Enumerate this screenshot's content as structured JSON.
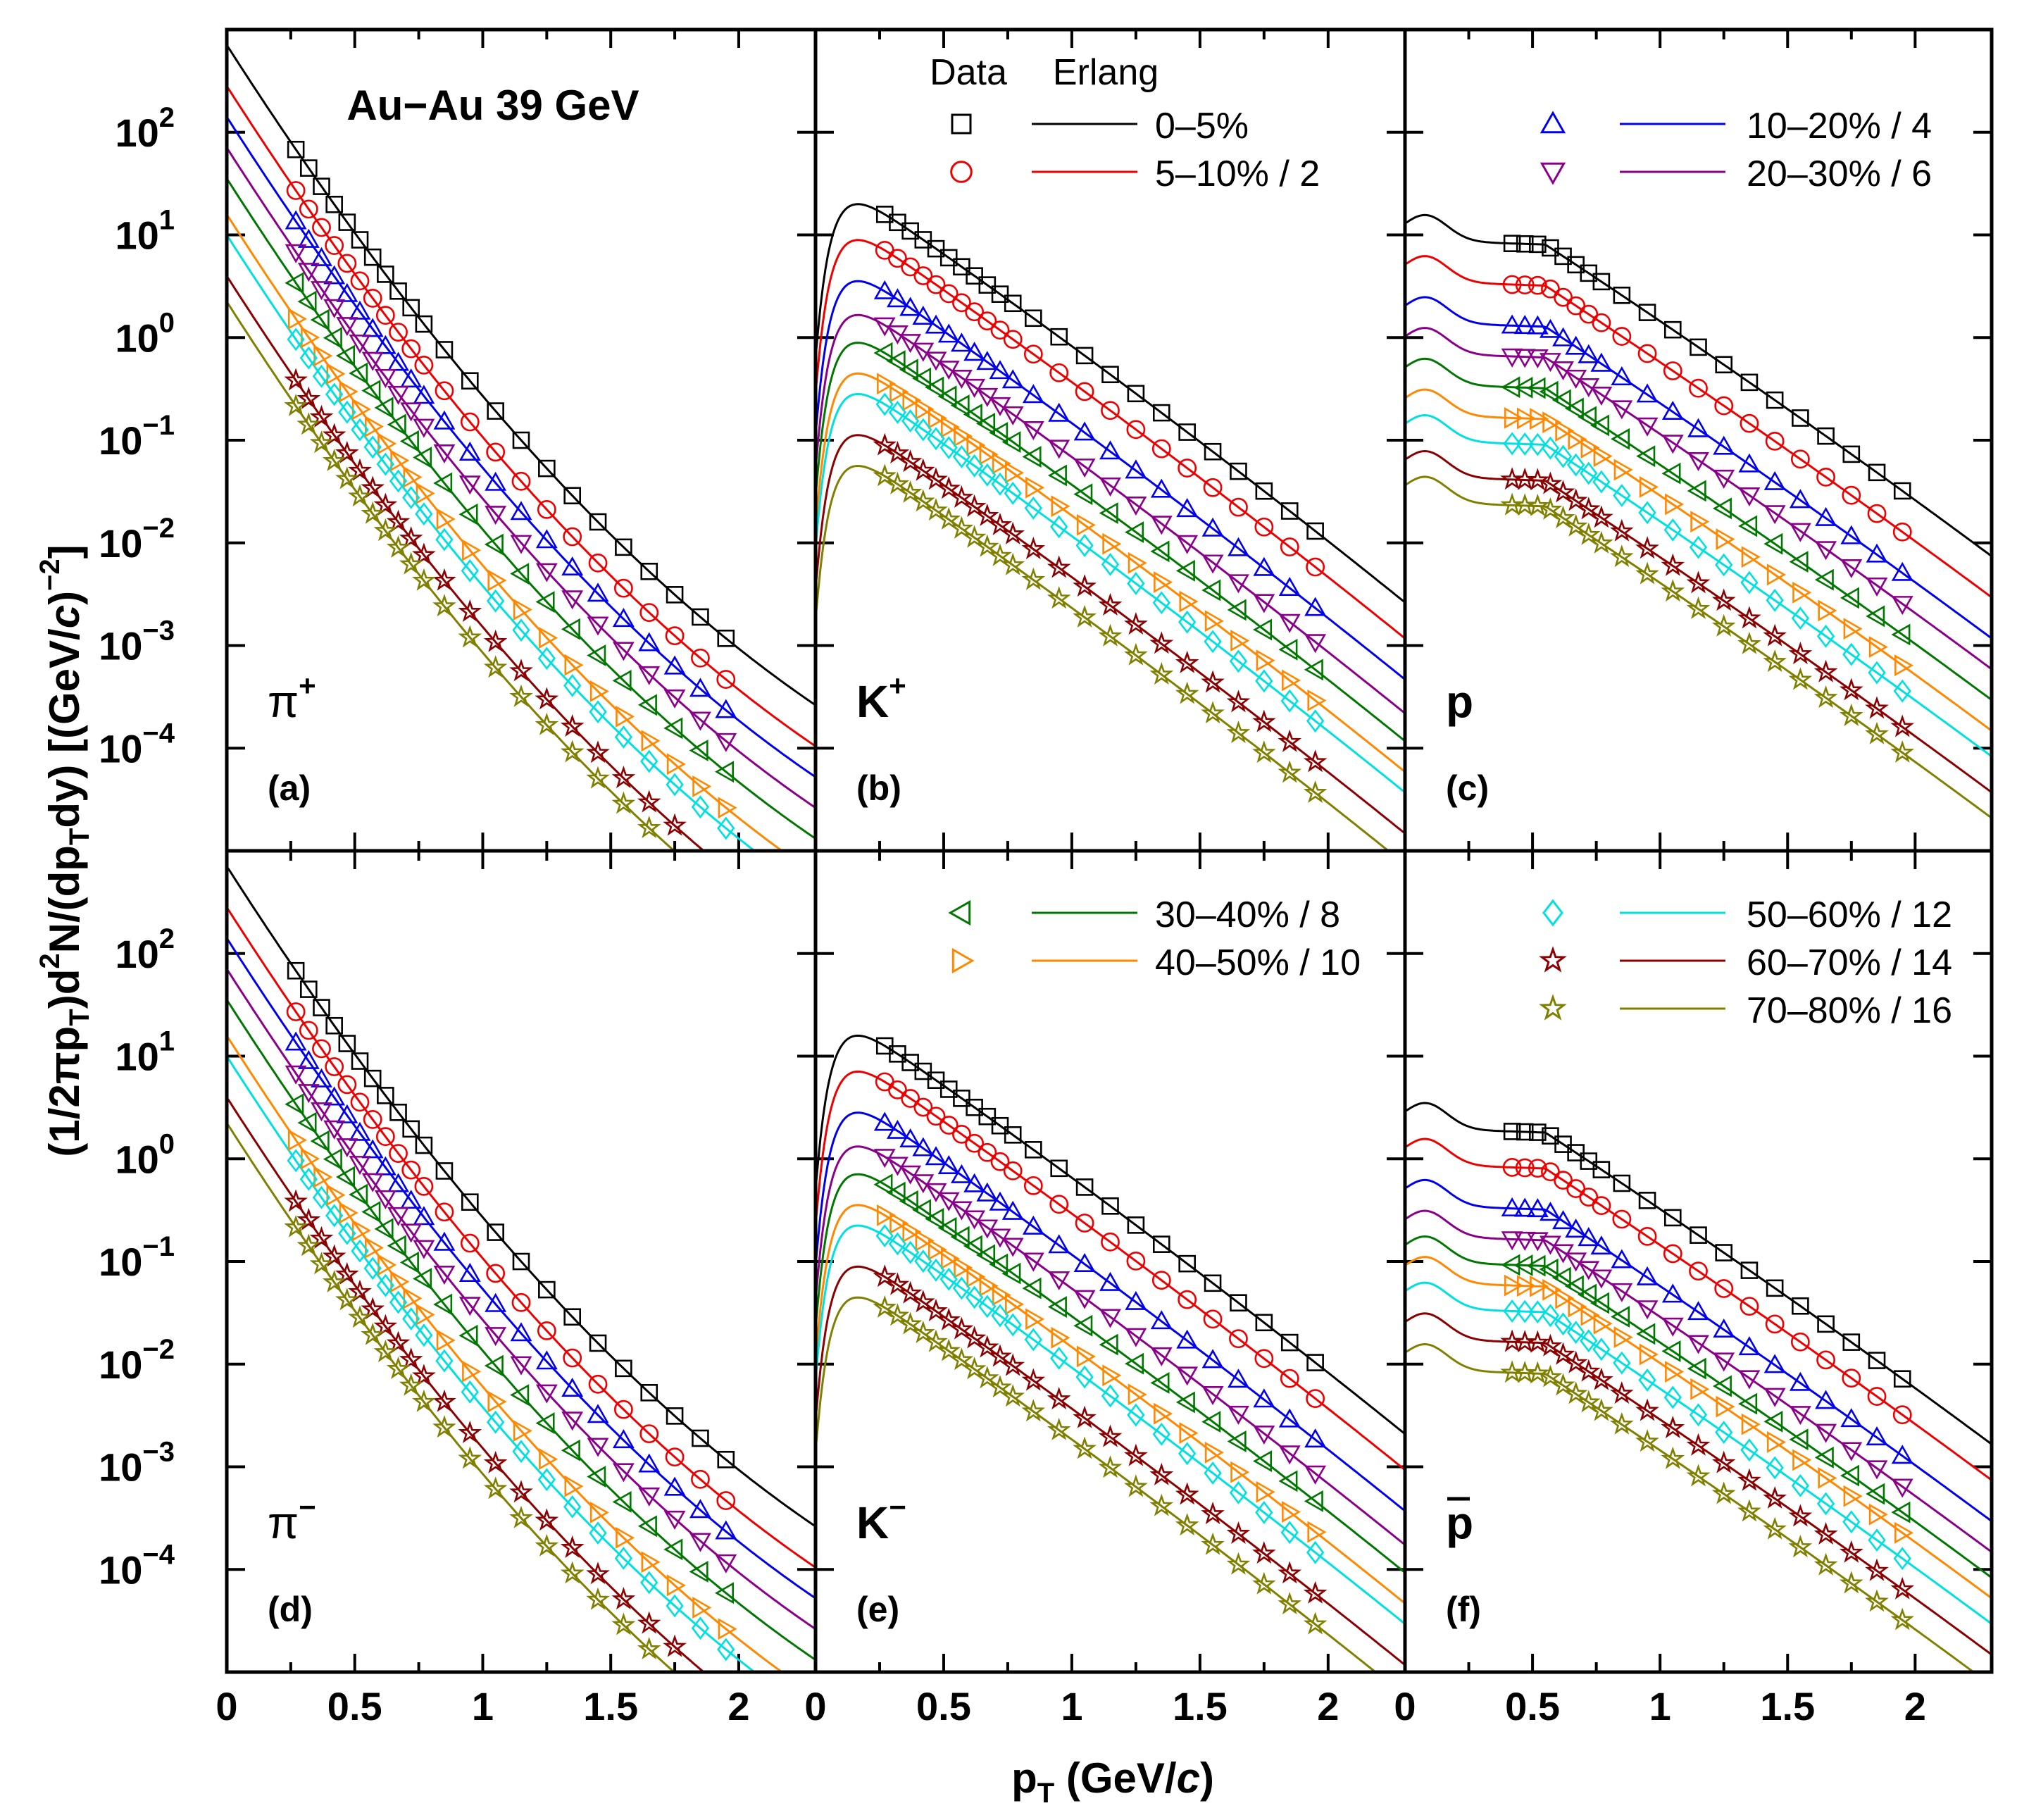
{
  "chart_data": {
    "type": "scatter",
    "title": "Au−Au 39 GeV",
    "xlabel_main": "p",
    "xlabel_sub": "T",
    "xlabel_unit_pre": " (GeV/",
    "xlabel_unit_c": "c",
    "xlabel_unit_post": ")",
    "ylabel": "(1/2πpₜ)d²N/(dpₜdy) [(GeV/c)⁻²]",
    "ylabel_parts": [
      "(1/2πp",
      "T",
      ")d",
      "2",
      "N/(dp",
      "T",
      "dy) [(GeV/",
      "c",
      ")",
      "−2",
      "]"
    ],
    "xlim": [
      0,
      2.3
    ],
    "ylim_log10": [
      -5,
      3
    ],
    "x_ticks": [
      "0",
      "0.5",
      "1",
      "1.5",
      "2"
    ],
    "y_tick_base": "10",
    "y_tick_exponents": [
      "2",
      "1",
      "0",
      "−1",
      "−2",
      "−3",
      "−4"
    ],
    "legend": {
      "header_data": "Data",
      "header_fit": "Erlang",
      "entries": [
        {
          "label": "0–5%",
          "color": "#000000",
          "marker": "square"
        },
        {
          "label": "5–10% / 2",
          "color": "#ee0000",
          "marker": "circle"
        },
        {
          "label": "10–20% / 4",
          "color": "#0000ee",
          "marker": "triangle-up"
        },
        {
          "label": "20–30% / 6",
          "color": "#8b008b",
          "marker": "triangle-down"
        },
        {
          "label": "30–40% / 8",
          "color": "#007700",
          "marker": "triangle-left"
        },
        {
          "label": "40–50% / 10",
          "color": "#ff8800",
          "marker": "triangle-right"
        },
        {
          "label": "50–60% / 12",
          "color": "#00e0e0",
          "marker": "diamond"
        },
        {
          "label": "60–70% / 14",
          "color": "#8b0000",
          "marker": "star"
        },
        {
          "label": "70–80% / 16",
          "color": "#808000",
          "marker": "star-open"
        }
      ]
    },
    "panels": [
      {
        "tag": "(a)",
        "particle": "π",
        "charge": "+",
        "model": "pion",
        "y0": [
          2.85,
          2.45,
          2.15,
          1.85,
          1.55,
          1.2,
          1.0,
          0.6,
          0.35
        ],
        "x_points": [
          0.27,
          0.32,
          0.37,
          0.42,
          0.47,
          0.52,
          0.57,
          0.62,
          0.67,
          0.72,
          0.77,
          0.85,
          0.95,
          1.05,
          1.15,
          1.25,
          1.35,
          1.45,
          1.55,
          1.65,
          1.75,
          1.85,
          1.95
        ]
      },
      {
        "tag": "(b)",
        "particle": "K",
        "charge": "+",
        "model": "kaon",
        "y0": [
          1.3,
          0.95,
          0.55,
          0.22,
          -0.05,
          -0.35,
          -0.55,
          -0.95,
          -1.25
        ],
        "x_points": [
          0.27,
          0.32,
          0.37,
          0.42,
          0.47,
          0.52,
          0.57,
          0.62,
          0.67,
          0.72,
          0.77,
          0.85,
          0.95,
          1.05,
          1.15,
          1.25,
          1.35,
          1.45,
          1.55,
          1.65,
          1.75,
          1.85,
          1.95
        ]
      },
      {
        "tag": "(c)",
        "particle": "p",
        "charge": "",
        "model": "proton",
        "y0": [
          0.95,
          0.55,
          0.15,
          -0.15,
          -0.45,
          -0.75,
          -1.0,
          -1.35,
          -1.6
        ],
        "x_points": [
          0.42,
          0.47,
          0.52,
          0.57,
          0.62,
          0.67,
          0.72,
          0.77,
          0.85,
          0.95,
          1.05,
          1.15,
          1.25,
          1.35,
          1.45,
          1.55,
          1.65,
          1.75,
          1.85,
          1.95
        ]
      },
      {
        "tag": "(d)",
        "particle": "π",
        "charge": "−",
        "model": "pion",
        "y0": [
          2.85,
          2.45,
          2.15,
          1.85,
          1.55,
          1.2,
          1.0,
          0.6,
          0.35
        ],
        "x_points": [
          0.27,
          0.32,
          0.37,
          0.42,
          0.47,
          0.52,
          0.57,
          0.62,
          0.67,
          0.72,
          0.77,
          0.85,
          0.95,
          1.05,
          1.15,
          1.25,
          1.35,
          1.45,
          1.55,
          1.65,
          1.75,
          1.85,
          1.95
        ]
      },
      {
        "tag": "(e)",
        "particle": "K",
        "charge": "−",
        "model": "kaon",
        "y0": [
          1.2,
          0.85,
          0.45,
          0.12,
          -0.15,
          -0.45,
          -0.65,
          -1.05,
          -1.35
        ],
        "x_points": [
          0.27,
          0.32,
          0.37,
          0.42,
          0.47,
          0.52,
          0.57,
          0.62,
          0.67,
          0.72,
          0.77,
          0.85,
          0.95,
          1.05,
          1.15,
          1.25,
          1.35,
          1.45,
          1.55,
          1.65,
          1.75,
          1.85,
          1.95
        ]
      },
      {
        "tag": "(f)",
        "particle": "p",
        "charge": "",
        "bar": true,
        "model": "proton",
        "y0": [
          0.3,
          -0.05,
          -0.45,
          -0.75,
          -1.0,
          -1.2,
          -1.45,
          -1.75,
          -2.05
        ],
        "x_points": [
          0.42,
          0.47,
          0.52,
          0.57,
          0.62,
          0.67,
          0.72,
          0.77,
          0.85,
          0.95,
          1.05,
          1.15,
          1.25,
          1.35,
          1.45,
          1.55,
          1.65,
          1.75,
          1.85,
          1.95
        ]
      }
    ]
  }
}
